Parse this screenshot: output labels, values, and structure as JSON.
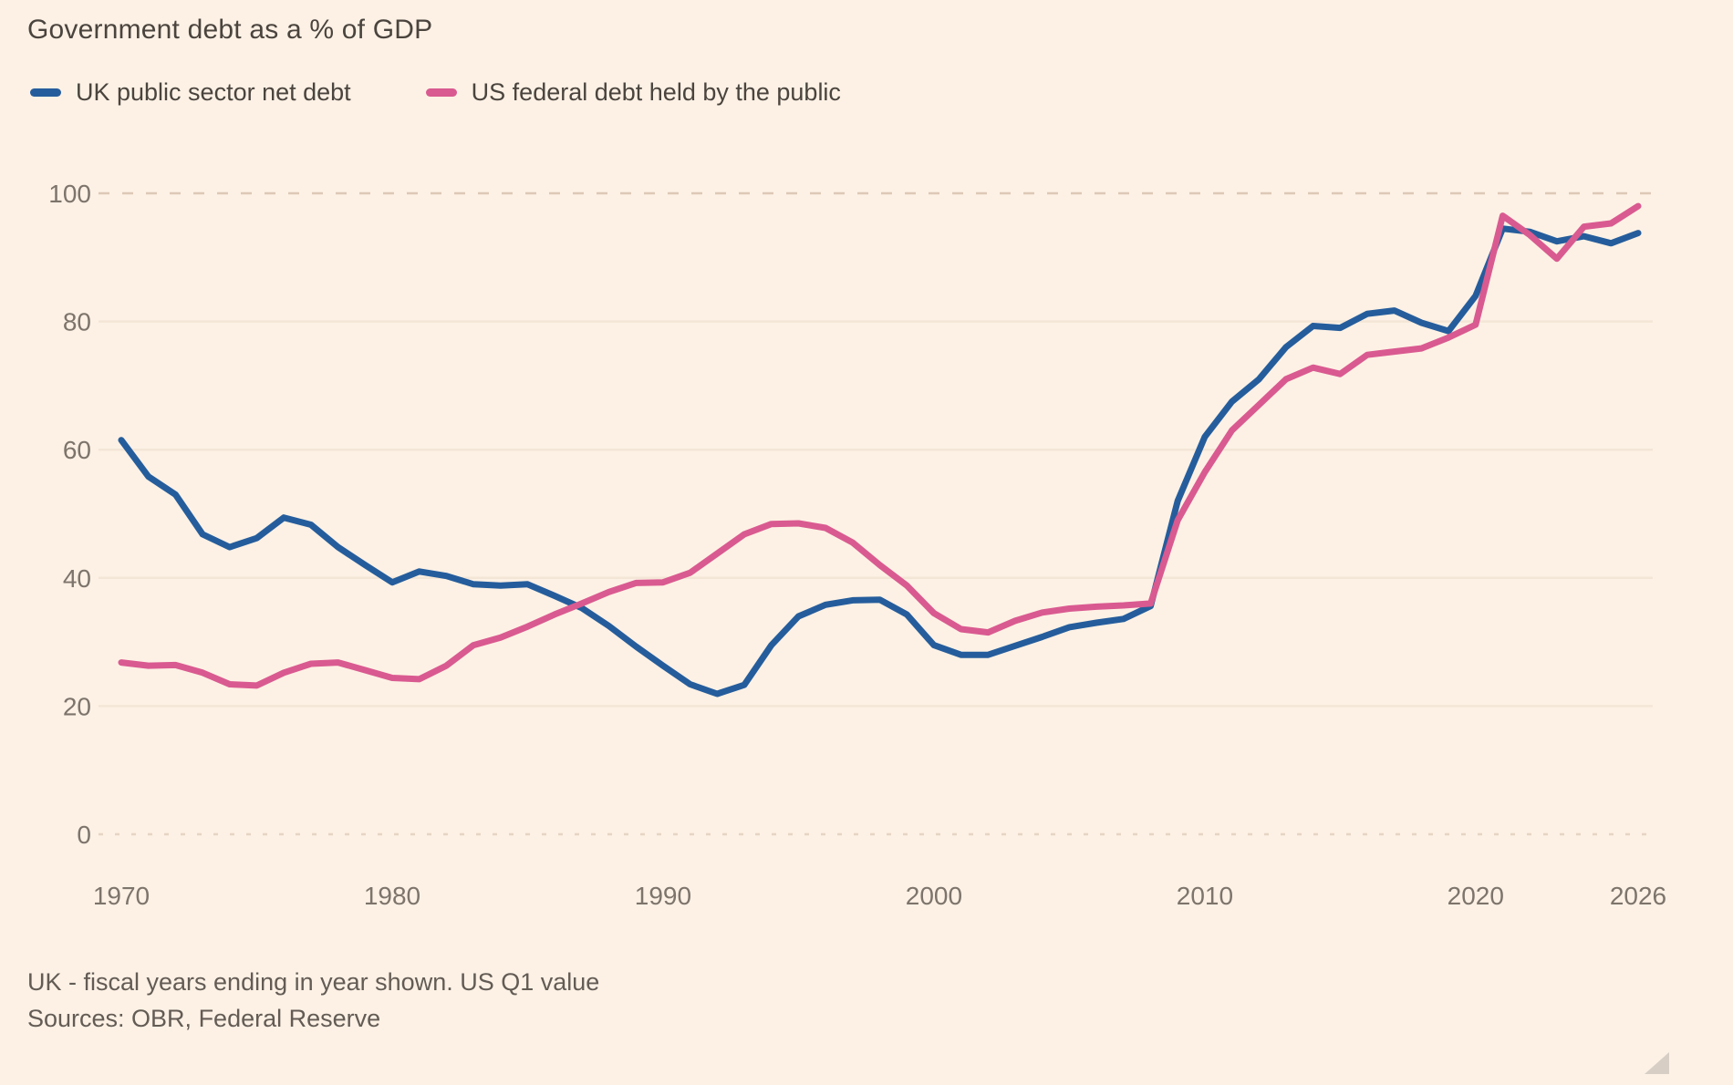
{
  "title": "Government debt as a % of GDP",
  "footnote": "UK - fiscal years ending in year shown. US Q1 value",
  "sources": "Sources: OBR, Federal Reserve",
  "colors": {
    "background": "#fdf1e5",
    "uk_line": "#255d9c",
    "us_line": "#d95a90",
    "title_text": "#4a443e",
    "tick_text": "#7d746b",
    "gridline": "#f4e6d7",
    "gridline_top_dashed": "#ddc8b6"
  },
  "chart_data": {
    "type": "line",
    "title": "Government debt as a % of GDP",
    "xlabel": "",
    "ylabel": "",
    "ylim": [
      0,
      100
    ],
    "yticks": [
      0,
      20,
      40,
      60,
      80,
      100
    ],
    "xticks": [
      1970,
      1980,
      1990,
      2000,
      2010,
      2020,
      2026
    ],
    "grid": "horizontal only; 100 line dashed, 0 line faint dashed",
    "legend_position": "top-left",
    "x": [
      1970,
      1971,
      1972,
      1973,
      1974,
      1975,
      1976,
      1977,
      1978,
      1979,
      1980,
      1981,
      1982,
      1983,
      1984,
      1985,
      1986,
      1987,
      1988,
      1989,
      1990,
      1991,
      1992,
      1993,
      1994,
      1995,
      1996,
      1997,
      1998,
      1999,
      2000,
      2001,
      2002,
      2003,
      2004,
      2005,
      2006,
      2007,
      2008,
      2009,
      2010,
      2011,
      2012,
      2013,
      2014,
      2015,
      2016,
      2017,
      2018,
      2019,
      2020,
      2021,
      2022,
      2023,
      2024,
      2025,
      2026
    ],
    "series": [
      {
        "name": "UK public sector net debt",
        "color": "#255d9c",
        "values": [
          61.5,
          55.8,
          53.0,
          46.8,
          44.8,
          46.2,
          49.4,
          48.3,
          44.8,
          42.0,
          39.3,
          41.0,
          40.3,
          39.0,
          38.8,
          39.0,
          37.2,
          35.3,
          32.5,
          29.3,
          26.3,
          23.4,
          21.9,
          23.3,
          29.5,
          34.0,
          35.8,
          36.5,
          36.6,
          34.3,
          29.5,
          28.0,
          28.0,
          29.4,
          30.8,
          32.3,
          33.0,
          33.6,
          35.6,
          52.0,
          62.0,
          67.5,
          71.0,
          76.0,
          79.3,
          79.0,
          81.2,
          81.7,
          79.8,
          78.5,
          84.0,
          94.5,
          94.0,
          92.5,
          93.3,
          92.2,
          93.8
        ]
      },
      {
        "name": "US federal debt held by the public",
        "color": "#d95a90",
        "values": [
          26.8,
          26.3,
          26.4,
          25.2,
          23.4,
          23.2,
          25.2,
          26.6,
          26.8,
          25.6,
          24.4,
          24.2,
          26.3,
          29.5,
          30.7,
          32.4,
          34.3,
          36.0,
          37.8,
          39.2,
          39.3,
          40.8,
          43.8,
          46.8,
          48.4,
          48.5,
          47.8,
          45.5,
          42.0,
          38.8,
          34.5,
          32.0,
          31.5,
          33.3,
          34.6,
          35.2,
          35.5,
          35.7,
          36.0,
          49.0,
          56.5,
          63.0,
          67.0,
          71.0,
          72.8,
          71.8,
          74.8,
          75.3,
          75.8,
          77.5,
          79.5,
          96.5,
          93.5,
          89.8,
          94.8,
          95.3,
          98.0
        ]
      }
    ]
  }
}
